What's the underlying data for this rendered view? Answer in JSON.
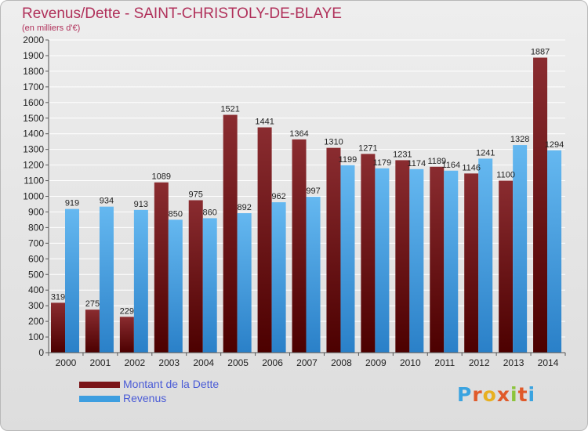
{
  "header": {
    "title": "Revenus/Dette - SAINT-CHRISTOLY-DE-BLAYE",
    "subtitle": "(en milliers d'€)"
  },
  "legend": {
    "items": [
      {
        "label": "Montant de la Dette",
        "color": "#7a1418"
      },
      {
        "label": "Revenus",
        "color": "#3d9ee0"
      }
    ]
  },
  "brand": {
    "logo_text": "Proxiti"
  },
  "colors": {
    "debt_top": "#8a2c30",
    "debt_bottom": "#4c0000",
    "rev_top": "#65b8f0",
    "rev_bottom": "#2a80c8",
    "grid": "#ffffff",
    "text": "#222222"
  },
  "chart_data": {
    "type": "bar",
    "title": "Revenus/Dette - SAINT-CHRISTOLY-DE-BLAYE",
    "subtitle": "(en milliers d'€)",
    "xlabel": "",
    "ylabel": "",
    "ylim": [
      0,
      2000
    ],
    "ytick_step": 100,
    "yticks": [
      "0",
      "100",
      "200",
      "300",
      "400",
      "500",
      "600",
      "700",
      "800",
      "900",
      "1000",
      "1100",
      "1200",
      "1300",
      "1400",
      "1500",
      "1600",
      "1700",
      "1800",
      "1900",
      "2000"
    ],
    "grid": true,
    "legend_position": "bottom-left",
    "categories": [
      "2000",
      "2001",
      "2002",
      "2003",
      "2004",
      "2005",
      "2006",
      "2007",
      "2008",
      "2009",
      "2010",
      "2011",
      "2012",
      "2013",
      "2014"
    ],
    "series": [
      {
        "name": "Montant de la Dette",
        "values": [
          319,
          275,
          229,
          1089,
          975,
          1521,
          1441,
          1364,
          1310,
          1271,
          1231,
          1189,
          1146,
          1100,
          1887
        ]
      },
      {
        "name": "Revenus",
        "values": [
          919,
          934,
          913,
          850,
          860,
          892,
          962,
          997,
          1199,
          1179,
          1174,
          1164,
          1241,
          1328,
          1294
        ]
      }
    ]
  }
}
